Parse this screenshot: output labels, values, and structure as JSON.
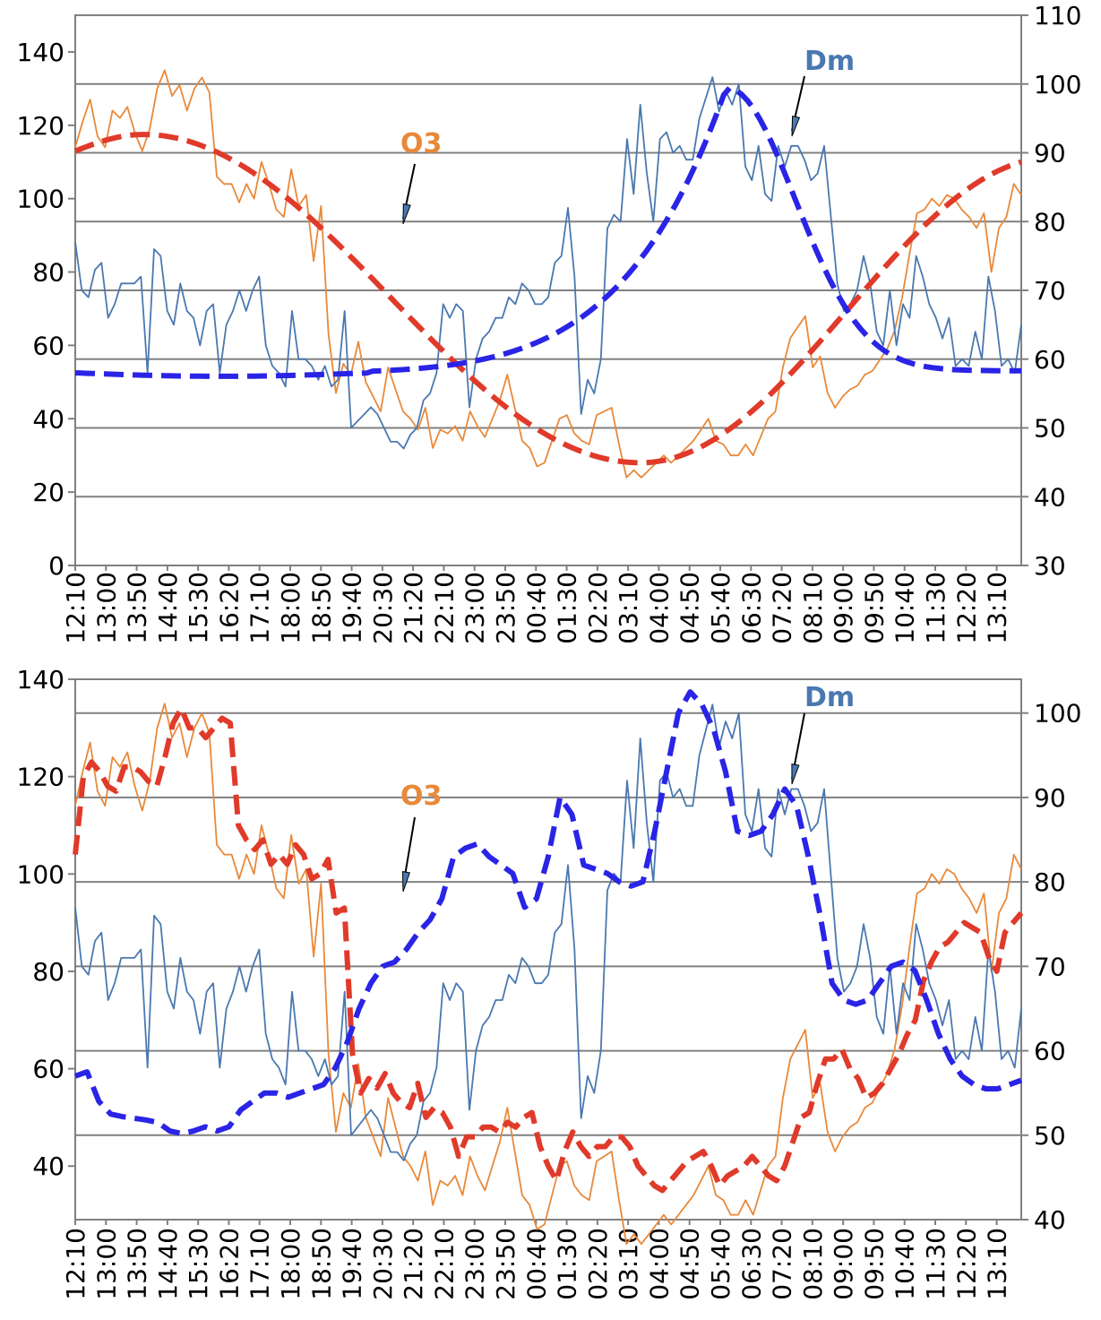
{
  "colors": {
    "o3_raw": "#e8893a",
    "dm_raw": "#4a78b0",
    "o3_smooth": "#e03a2a",
    "dm_smooth": "#2a24e6",
    "o3_label": "#e8893a",
    "dm_label": "#4a78b0",
    "grid": "#808080"
  },
  "time_labels": [
    "12:10",
    "13:00",
    "13:50",
    "14:40",
    "15:30",
    "16:20",
    "17:10",
    "18:00",
    "18:50",
    "19:40",
    "20:30",
    "21:20",
    "22:10",
    "23:00",
    "23:50",
    "00:40",
    "01:30",
    "02:20",
    "03:10",
    "04:00",
    "04:50",
    "05:40",
    "06:30",
    "07:20",
    "08:10",
    "09:00",
    "09:50",
    "10:40",
    "11:30",
    "12:20",
    "13:10"
  ],
  "chart_data": [
    {
      "type": "line",
      "annotations": [
        {
          "text": "O3"
        },
        {
          "text": "Dm"
        }
      ],
      "y_left": {
        "ylim": [
          0,
          150
        ],
        "ticks": [
          "0",
          "20",
          "40",
          "60",
          "80",
          "100",
          "120",
          "140"
        ],
        "tick_values": [
          0,
          20,
          40,
          60,
          80,
          100,
          120,
          140
        ]
      },
      "y_right": {
        "ylim": [
          30,
          110
        ],
        "ticks": [
          "30",
          "40",
          "50",
          "60",
          "70",
          "80",
          "90",
          "100",
          "110"
        ],
        "tick_values": [
          30,
          40,
          50,
          60,
          70,
          80,
          90,
          100,
          110
        ]
      },
      "grid": "horizontal lines at right-axis ticks 40–100",
      "series": [
        {
          "key": "o3_raw",
          "axis": "left",
          "style": "solid-thin",
          "values": [
            114,
            121,
            127,
            117,
            114,
            124,
            122,
            125,
            118,
            113,
            119,
            130,
            135,
            128,
            131,
            124,
            130,
            133,
            129,
            106,
            104,
            104,
            99,
            104,
            100,
            110,
            104,
            97,
            95,
            108,
            98,
            101,
            83,
            98,
            63,
            47,
            55,
            52,
            61,
            50,
            46,
            42,
            54,
            48,
            42,
            40,
            37,
            43,
            32,
            37,
            36,
            38,
            34,
            42,
            38,
            35,
            40,
            45,
            52,
            43,
            34,
            32,
            27,
            28,
            34,
            40,
            41,
            36,
            34,
            33,
            41,
            42,
            43,
            33,
            24,
            26,
            24,
            26,
            28,
            30,
            28,
            30,
            32,
            34,
            37,
            40,
            34,
            33,
            30,
            30,
            33,
            30,
            35,
            40,
            42,
            54,
            62,
            65,
            68,
            54,
            57,
            47,
            43,
            46,
            48,
            49,
            52,
            53,
            56,
            59,
            64,
            73,
            85,
            96,
            97,
            100,
            98,
            101,
            100,
            97,
            95,
            92,
            96,
            80,
            92,
            95,
            104,
            101
          ]
        },
        {
          "key": "dm_raw",
          "axis": "right",
          "style": "solid-thin",
          "values": [
            77,
            70,
            69,
            73,
            74,
            66,
            68,
            71,
            71,
            71,
            72,
            58,
            76,
            75,
            67,
            65,
            71,
            67,
            66,
            62,
            67,
            68,
            58,
            65,
            67,
            70,
            67,
            70,
            72,
            62,
            59,
            58,
            56,
            67,
            60,
            60,
            59,
            57,
            59,
            56,
            57,
            67,
            50,
            51,
            52,
            53,
            52,
            50,
            48,
            48,
            47,
            49,
            50,
            54,
            55,
            58,
            68,
            66,
            68,
            67,
            53,
            60,
            63,
            64,
            66,
            66,
            69,
            68,
            71,
            70,
            68,
            68,
            69,
            74,
            75,
            82,
            72,
            52,
            57,
            55,
            60,
            79,
            81,
            80,
            92,
            84,
            97,
            87,
            80,
            92,
            93,
            90,
            91,
            89,
            89,
            95,
            98,
            101,
            96,
            99,
            97,
            100,
            88,
            86,
            91,
            84,
            83,
            91,
            88,
            91,
            91,
            89,
            86,
            87,
            91,
            81,
            71,
            67,
            68,
            70,
            75,
            71,
            64,
            62,
            70,
            62,
            68,
            66,
            75,
            72,
            68,
            66,
            63,
            66,
            59,
            60,
            59,
            64,
            60,
            72,
            67,
            59,
            60,
            58,
            65
          ]
        },
        {
          "key": "o3_smooth",
          "axis": "left",
          "style": "dashed-thick",
          "model": "cosine",
          "peak_value": 117.5,
          "peak_time": "14:00",
          "trough_value": 28,
          "trough_time": "03:30",
          "start_value": 113,
          "end_value": 110
        },
        {
          "key": "dm_smooth",
          "axis": "right",
          "style": "dashed-thick",
          "model": "peaked",
          "base": 57.5,
          "peak_value": 99.5,
          "peak_time": "05:50",
          "start_value": 58,
          "end_value": 58.3
        }
      ]
    },
    {
      "type": "line",
      "annotations": [
        {
          "text": "O3"
        },
        {
          "text": "Dm"
        }
      ],
      "y_left": {
        "ylim": [
          29,
          140
        ],
        "ticks": [
          "40",
          "60",
          "80",
          "100",
          "120",
          "140"
        ],
        "tick_values": [
          40,
          60,
          80,
          100,
          120,
          140
        ]
      },
      "y_right": {
        "ylim": [
          40,
          104
        ],
        "ticks": [
          "40",
          "50",
          "60",
          "70",
          "80",
          "90",
          "100"
        ],
        "tick_values": [
          40,
          50,
          60,
          70,
          80,
          90,
          100
        ]
      },
      "grid": "horizontal lines at right-axis ticks 40–100",
      "series": [
        {
          "key": "o3_raw",
          "axis": "left",
          "same_as_chart": 0
        },
        {
          "key": "dm_raw",
          "axis": "right",
          "same_as_chart": 0
        },
        {
          "key": "o3_smooth",
          "axis": "left",
          "style": "dashed-thick",
          "values": [
            104,
            120,
            123,
            121,
            118,
            117,
            122,
            122,
            121,
            119,
            118,
            124,
            131,
            134,
            130,
            130,
            128,
            130,
            132,
            131,
            110,
            107,
            105,
            107,
            102,
            104,
            102,
            106,
            104,
            99,
            100,
            103,
            92,
            93,
            63,
            55,
            58,
            56,
            59,
            55,
            53,
            52,
            57,
            50,
            52,
            51,
            48,
            42,
            46,
            46,
            48,
            48,
            47,
            49,
            48,
            50,
            51,
            44,
            40,
            37,
            43,
            47,
            44,
            42,
            44,
            44,
            46,
            46,
            44,
            40,
            38,
            36,
            35,
            37,
            39,
            41,
            42,
            43,
            40,
            36,
            38,
            39,
            40,
            42,
            40,
            38,
            37,
            40,
            45,
            50,
            51,
            57,
            62,
            62,
            64,
            60,
            58,
            54,
            55,
            57,
            60,
            63,
            67,
            70,
            78,
            82,
            85,
            86,
            88,
            90,
            89,
            88,
            83,
            80,
            88,
            90,
            92
          ]
        },
        {
          "key": "dm_smooth",
          "axis": "right",
          "style": "dashed-thick",
          "values": [
            57,
            57.5,
            54,
            52.5,
            52.2,
            52,
            51.8,
            51.5,
            50.5,
            50.2,
            50.5,
            51,
            50.5,
            51,
            53,
            54,
            55,
            55,
            54.5,
            55,
            55.5,
            56,
            58,
            61,
            65,
            68,
            70,
            70.5,
            72,
            74,
            75.5,
            78,
            83,
            84,
            84.5,
            83,
            82,
            81,
            77,
            78,
            83,
            90,
            88,
            82,
            81.5,
            81,
            80,
            79.5,
            80,
            86,
            93,
            100,
            102.5,
            101,
            98,
            93,
            86,
            85.5,
            86,
            88,
            91,
            89,
            83,
            76,
            68,
            66,
            65.5,
            66,
            68,
            70,
            70.5,
            69.5,
            66,
            62,
            59,
            57,
            56,
            55.5,
            55.5,
            56,
            56.5
          ]
        }
      ]
    }
  ]
}
